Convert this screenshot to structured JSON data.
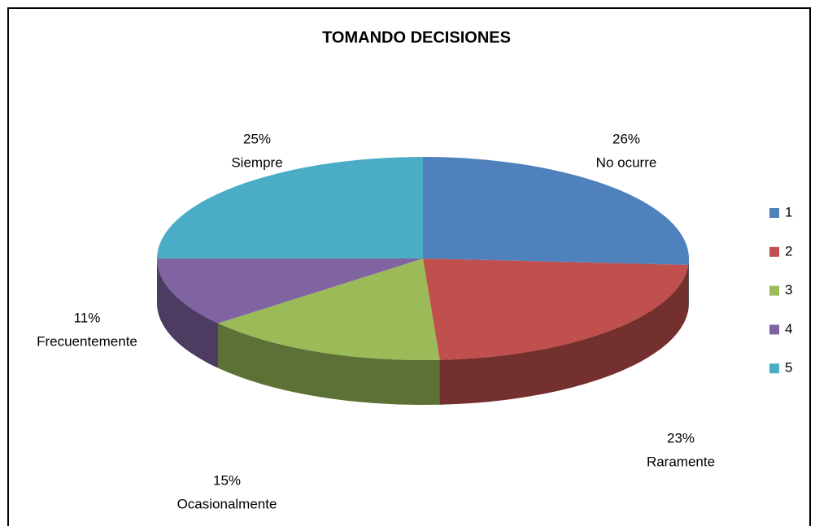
{
  "chart_data": {
    "type": "pie3d",
    "title": "TOMANDO DECISIONES",
    "categories": [
      "1",
      "2",
      "3",
      "4",
      "5"
    ],
    "labels": [
      "No ocurre",
      "Raramente",
      "Ocasionalmente",
      "Frecuentemente",
      "Siempre"
    ],
    "values": [
      26,
      23,
      15,
      11,
      25
    ],
    "value_labels": [
      "26%",
      "23%",
      "15%",
      "11%",
      "25%"
    ],
    "colors": [
      "#4f81bd",
      "#c0504d",
      "#9bbb59",
      "#8064a2",
      "#4bacc6"
    ],
    "legend": "right"
  }
}
